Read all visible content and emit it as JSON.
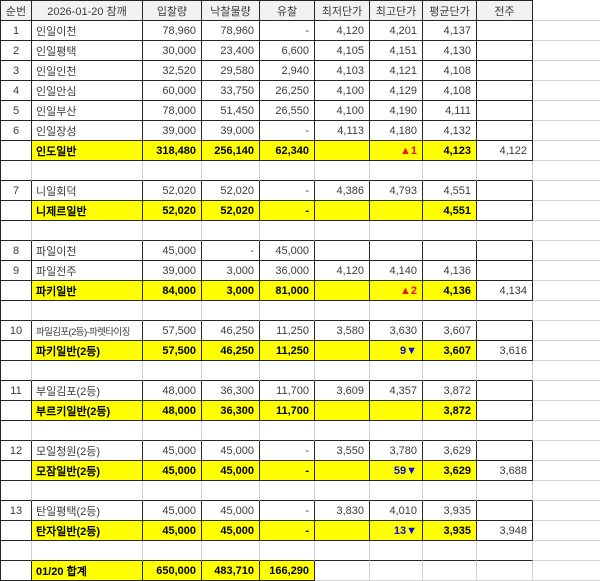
{
  "colors": {
    "highlight_yellow": "#ffff00",
    "up_red": "#ee1111",
    "down_blue": "#0b0be0",
    "border_black": "#262626",
    "gridline_gray": "#d2d2d2",
    "header_fill": "#f2f2f2",
    "cell_text": "#3b3b3b"
  },
  "header": {
    "columns": [
      "순번",
      "2026-01-20 참깨",
      "입찰량",
      "낙찰물량",
      "유찰",
      "최저단가",
      "최고단가",
      "평균단가",
      "전주"
    ]
  },
  "rows": [
    {
      "type": "data",
      "no": "1",
      "name": "인일이천",
      "bid": "78,960",
      "won": "78,960",
      "fail": "-",
      "min": "4,120",
      "max": "4,201",
      "avg": "4,137",
      "prev": ""
    },
    {
      "type": "data",
      "no": "2",
      "name": "인일평택",
      "bid": "30,000",
      "won": "23,400",
      "fail": "6,600",
      "min": "4,105",
      "max": "4,151",
      "avg": "4,130",
      "prev": ""
    },
    {
      "type": "data",
      "no": "3",
      "name": "인일인천",
      "bid": "32,520",
      "won": "29,580",
      "fail": "2,940",
      "min": "4,103",
      "max": "4,121",
      "avg": "4,108",
      "prev": ""
    },
    {
      "type": "data",
      "no": "4",
      "name": "인일안심",
      "bid": "60,000",
      "won": "33,750",
      "fail": "26,250",
      "min": "4,100",
      "max": "4,129",
      "avg": "4,108",
      "prev": ""
    },
    {
      "type": "data",
      "no": "5",
      "name": "인일부산",
      "bid": "78,000",
      "won": "51,450",
      "fail": "26,550",
      "min": "4,100",
      "max": "4,190",
      "avg": "4,111",
      "prev": ""
    },
    {
      "type": "data",
      "no": "6",
      "name": "인일장성",
      "bid": "39,000",
      "won": "39,000",
      "fail": "-",
      "min": "4,113",
      "max": "4,180",
      "avg": "4,132",
      "prev": ""
    },
    {
      "type": "subtotal",
      "name": "인도일반",
      "bid": "318,480",
      "won": "256,140",
      "fail": "62,340",
      "min": "",
      "change": "▲1",
      "dir": "up",
      "avg": "4,123",
      "prev": "4,122"
    },
    {
      "type": "sep"
    },
    {
      "type": "data",
      "no": "7",
      "name": "니일회덕",
      "bid": "52,020",
      "won": "52,020",
      "fail": "-",
      "min": "4,386",
      "max": "4,793",
      "avg": "4,551",
      "prev": ""
    },
    {
      "type": "subtotal",
      "name": "니제르일반",
      "bid": "52,020",
      "won": "52,020",
      "fail": "-",
      "min": "",
      "change": "",
      "dir": "",
      "avg": "4,551",
      "prev": ""
    },
    {
      "type": "sep"
    },
    {
      "type": "data",
      "no": "8",
      "name": "파일이천",
      "bid": "45,000",
      "won": "-",
      "fail": "45,000",
      "min": "",
      "max": "",
      "avg": "",
      "prev": ""
    },
    {
      "type": "data",
      "no": "9",
      "name": "파일전주",
      "bid": "39,000",
      "won": "3,000",
      "fail": "36,000",
      "min": "4,120",
      "max": "4,140",
      "avg": "4,136",
      "prev": ""
    },
    {
      "type": "subtotal",
      "name": "파키일반",
      "bid": "84,000",
      "won": "3,000",
      "fail": "81,000",
      "min": "",
      "change": "▲2",
      "dir": "up",
      "avg": "4,136",
      "prev": "4,134"
    },
    {
      "type": "sep"
    },
    {
      "type": "data",
      "no": "10",
      "name": "파일김포(2등)-파렛타이징",
      "small": true,
      "bid": "57,500",
      "won": "46,250",
      "fail": "11,250",
      "min": "3,580",
      "max": "3,630",
      "avg": "3,607",
      "prev": ""
    },
    {
      "type": "subtotal",
      "name": "파키일반(2등)",
      "bid": "57,500",
      "won": "46,250",
      "fail": "11,250",
      "min": "",
      "change": "9▼",
      "dir": "down",
      "avg": "3,607",
      "prev": "3,616"
    },
    {
      "type": "sep"
    },
    {
      "type": "data",
      "no": "11",
      "name": "부일김포(2등)",
      "bid": "48,000",
      "won": "36,300",
      "fail": "11,700",
      "min": "3,609",
      "max": "4,357",
      "avg": "3,872",
      "prev": ""
    },
    {
      "type": "subtotal",
      "name": "부르키일반(2등)",
      "bid": "48,000",
      "won": "36,300",
      "fail": "11,700",
      "min": "",
      "change": "",
      "dir": "",
      "avg": "3,872",
      "prev": ""
    },
    {
      "type": "sep"
    },
    {
      "type": "data",
      "no": "12",
      "name": "모일청원(2등)",
      "bid": "45,000",
      "won": "45,000",
      "fail": "-",
      "min": "3,550",
      "max": "3,780",
      "avg": "3,629",
      "prev": ""
    },
    {
      "type": "subtotal",
      "name": "모잠일반(2등)",
      "bid": "45,000",
      "won": "45,000",
      "fail": "-",
      "min": "",
      "change": "59▼",
      "dir": "down",
      "avg": "3,629",
      "prev": "3,688"
    },
    {
      "type": "sep"
    },
    {
      "type": "data",
      "no": "13",
      "name": "탄일평택(2등)",
      "bid": "45,000",
      "won": "45,000",
      "fail": "-",
      "min": "3,830",
      "max": "4,010",
      "avg": "3,935",
      "prev": ""
    },
    {
      "type": "subtotal",
      "name": "탄자일반(2등)",
      "bid": "45,000",
      "won": "45,000",
      "fail": "-",
      "min": "",
      "change": "13▼",
      "dir": "down",
      "avg": "3,935",
      "prev": "3,948"
    },
    {
      "type": "sep"
    },
    {
      "type": "total",
      "name": "01/20 합계",
      "bid": "650,000",
      "won": "483,710",
      "fail": "166,290"
    }
  ]
}
